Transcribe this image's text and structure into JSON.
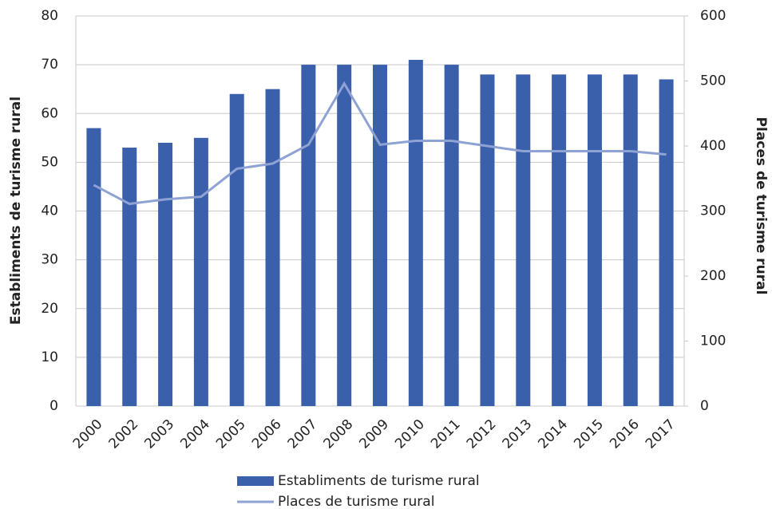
{
  "chart_data": {
    "type": "bar",
    "categories": [
      "2000",
      "2002",
      "2003",
      "2004",
      "2005",
      "2006",
      "2007",
      "2008",
      "2009",
      "2010",
      "2011",
      "2012",
      "2013",
      "2014",
      "2015",
      "2016",
      "2017"
    ],
    "series": [
      {
        "name": "Establiments de turisme rural",
        "type": "bar",
        "color": "#3b60ab",
        "values": [
          57,
          53,
          54,
          55,
          64,
          65,
          70,
          70,
          70,
          71,
          70,
          68,
          68,
          68,
          68,
          68,
          67
        ]
      },
      {
        "name": "Places de turisme rural",
        "type": "line",
        "axis": "y2",
        "color": "#8fa2d4",
        "values": [
          340,
          311,
          318,
          322,
          365,
          373,
          402,
          496,
          402,
          408,
          408,
          400,
          392,
          392,
          392,
          392,
          387
        ]
      }
    ],
    "ylabel": "Establiments de turisme rural",
    "y2label": "Places de turisme rural",
    "ylim": [
      0,
      80
    ],
    "yticks": [
      0,
      10,
      20,
      30,
      40,
      50,
      60,
      70,
      80
    ],
    "y2lim": [
      0,
      600
    ],
    "y2ticks": [
      0,
      100,
      200,
      300,
      400,
      500,
      600
    ],
    "grid": true,
    "legend": "bottom"
  }
}
